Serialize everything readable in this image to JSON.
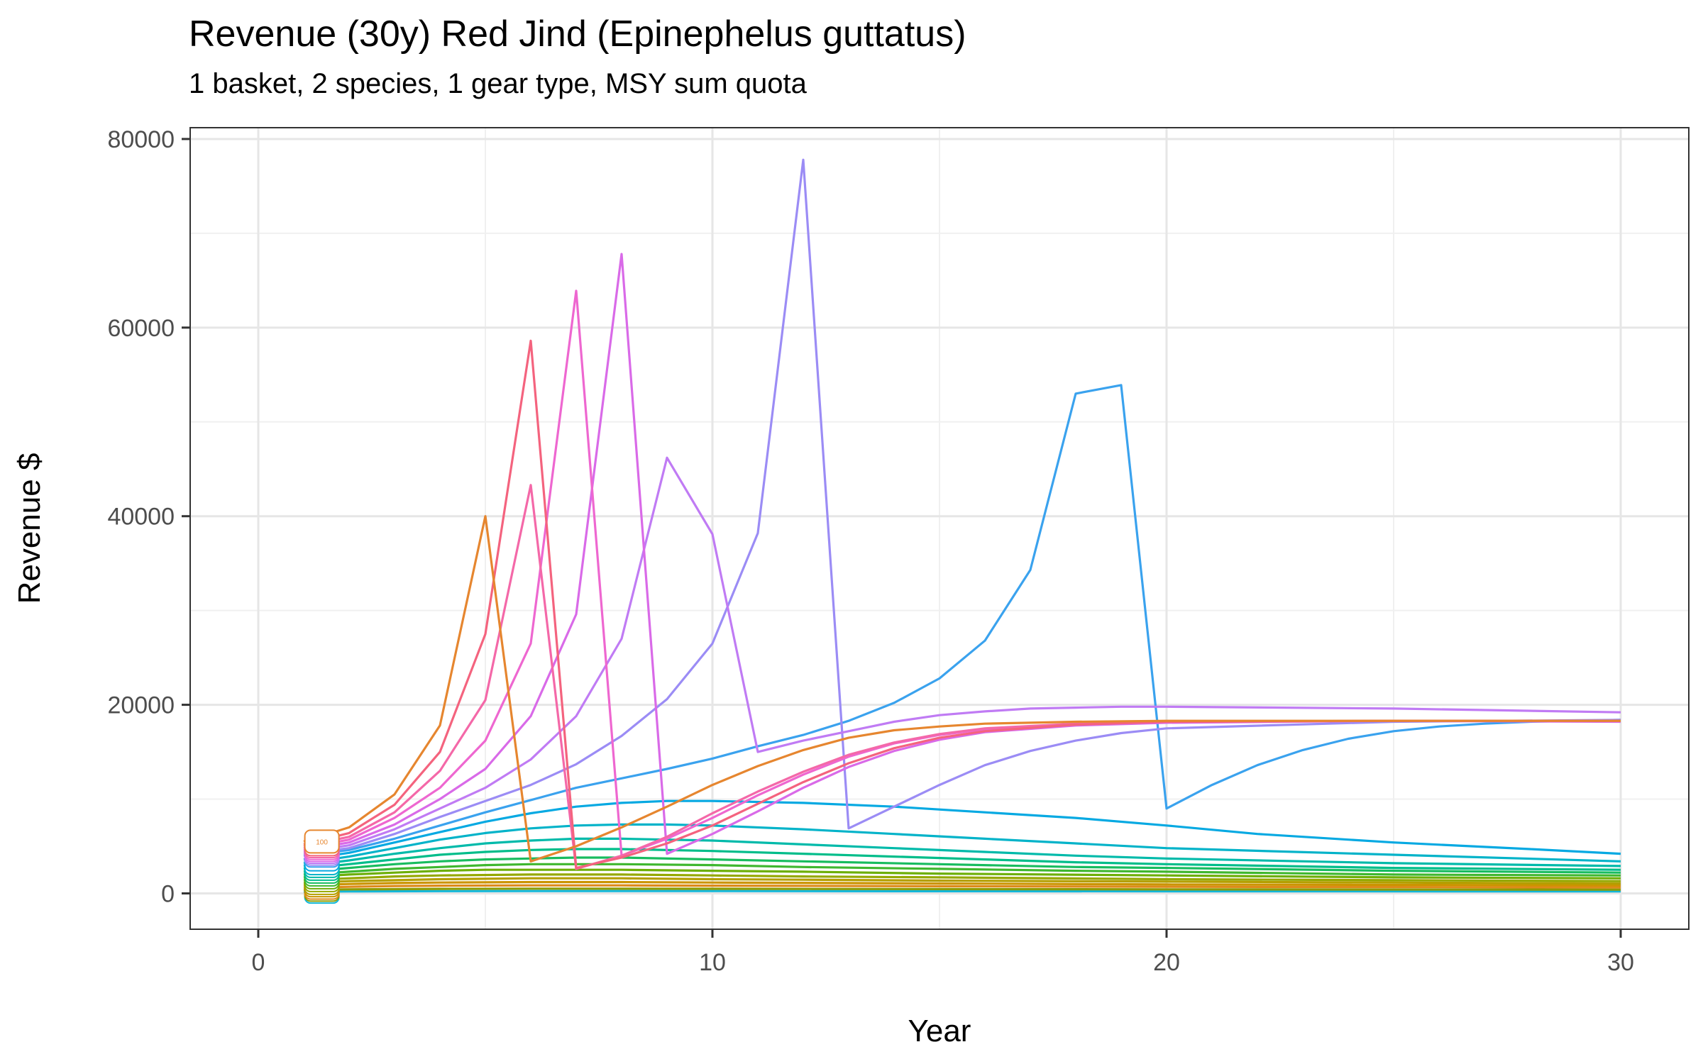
{
  "chart_data": {
    "type": "line",
    "title": "Revenue (30y) Red Jind (Epinephelus guttatus)",
    "subtitle": "1 basket, 2 species, 1 gear type, MSY sum quota",
    "xlabel": "Year",
    "ylabel": "Revenue $",
    "xlim": [
      -1.5,
      31.5
    ],
    "ylim": [
      -3800,
      81200
    ],
    "xticks": [
      0,
      10,
      20,
      30
    ],
    "xtick_labels": [
      "0",
      "10",
      "20",
      "30"
    ],
    "yticks": [
      0,
      20000,
      40000,
      60000,
      80000
    ],
    "ytick_labels": [
      "0",
      "20000",
      "40000",
      "60000",
      "80000"
    ],
    "grid": true,
    "legend": "none",
    "start_label": "100",
    "series": [
      {
        "color": "#E6862F",
        "x": [
          1,
          2,
          3,
          4,
          5,
          6,
          7,
          8,
          9,
          10,
          11,
          12,
          13,
          14,
          15,
          16,
          18,
          20,
          25,
          30
        ],
        "y": [
          5500,
          7000,
          10500,
          17800,
          40000,
          3400,
          5000,
          7000,
          9200,
          11500,
          13500,
          15200,
          16500,
          17300,
          17700,
          18000,
          18200,
          18300,
          18300,
          18300
        ]
      },
      {
        "color": "#F4637E",
        "x": [
          1,
          2,
          3,
          4,
          5,
          6,
          7,
          8,
          9,
          10,
          11,
          12,
          13,
          14,
          15,
          16,
          18,
          20,
          25,
          30
        ],
        "y": [
          5200,
          6400,
          9400,
          15000,
          27500,
          58600,
          2700,
          3800,
          5300,
          7200,
          9500,
          11800,
          13800,
          15400,
          16500,
          17200,
          17900,
          18200,
          18300,
          18300
        ]
      },
      {
        "color": "#F468A8",
        "x": [
          1,
          2,
          3,
          4,
          5,
          6,
          7,
          8,
          9,
          10,
          11,
          12,
          13,
          14,
          15,
          16,
          18,
          20,
          25,
          30
        ],
        "y": [
          5000,
          6000,
          8600,
          13000,
          20500,
          43300,
          2600,
          4000,
          6000,
          8500,
          10800,
          12900,
          14700,
          16000,
          16900,
          17500,
          18000,
          18200,
          18300,
          18300
        ]
      },
      {
        "color": "#EE67D0",
        "x": [
          1,
          2,
          3,
          4,
          5,
          6,
          7,
          8,
          9,
          10,
          11,
          12,
          13,
          14,
          15,
          16,
          18,
          20,
          25,
          30
        ],
        "y": [
          4800,
          5700,
          8000,
          11200,
          16200,
          26500,
          63900,
          4000,
          5800,
          8000,
          10400,
          12600,
          14500,
          15900,
          16800,
          17400,
          18000,
          18200,
          18300,
          18300
        ]
      },
      {
        "color": "#D96AE8",
        "x": [
          1,
          2,
          3,
          4,
          5,
          6,
          7,
          8,
          9,
          10,
          11,
          12,
          13,
          14,
          15,
          16,
          18,
          20,
          25,
          30
        ],
        "y": [
          4600,
          5400,
          7300,
          10000,
          13200,
          18800,
          29600,
          67800,
          4200,
          6300,
          8700,
          11200,
          13400,
          15100,
          16300,
          17100,
          17800,
          18100,
          18300,
          18200
        ]
      },
      {
        "color": "#C07BF4",
        "x": [
          1,
          2,
          3,
          4,
          5,
          6,
          7,
          8,
          9,
          10,
          11,
          12,
          13,
          14,
          15,
          16,
          17,
          18,
          19,
          20,
          25,
          30
        ],
        "y": [
          4400,
          5100,
          6800,
          9000,
          11200,
          14200,
          18800,
          27000,
          46200,
          38100,
          15000,
          16200,
          17200,
          18200,
          18900,
          19300,
          19600,
          19700,
          19800,
          19800,
          19600,
          19200
        ]
      },
      {
        "color": "#9B8CF5",
        "x": [
          1,
          2,
          3,
          4,
          5,
          6,
          7,
          8,
          9,
          10,
          11,
          12,
          13,
          14,
          15,
          16,
          17,
          18,
          19,
          20,
          25,
          30
        ],
        "y": [
          4200,
          4800,
          6300,
          8100,
          9800,
          11500,
          13700,
          16700,
          20600,
          26500,
          38200,
          77800,
          6900,
          9200,
          11500,
          13600,
          15100,
          16200,
          17000,
          17500,
          18200,
          18400
        ]
      },
      {
        "color": "#3AA2EE",
        "x": [
          1,
          2,
          3,
          4,
          5,
          6,
          7,
          8,
          9,
          10,
          11,
          12,
          13,
          14,
          15,
          16,
          17,
          18,
          19,
          20,
          21,
          22,
          23,
          24,
          25,
          26,
          27,
          28,
          29,
          30
        ],
        "y": [
          4000,
          4600,
          5800,
          7200,
          8600,
          9900,
          11200,
          12200,
          13200,
          14300,
          15600,
          16800,
          18300,
          20200,
          22800,
          26800,
          34300,
          53000,
          53900,
          9000,
          11500,
          13600,
          15200,
          16400,
          17200,
          17700,
          18000,
          18200,
          18300,
          18400
        ]
      },
      {
        "color": "#06A9E2",
        "x": [
          1,
          2,
          3,
          4,
          5,
          6,
          7,
          8,
          9,
          10,
          12,
          14,
          16,
          18,
          20,
          22,
          25,
          28,
          30
        ],
        "y": [
          3600,
          4300,
          5400,
          6500,
          7600,
          8500,
          9200,
          9600,
          9800,
          9800,
          9600,
          9200,
          8600,
          8000,
          7200,
          6300,
          5400,
          4700,
          4200
        ]
      },
      {
        "color": "#03B3C9",
        "x": [
          1,
          2,
          3,
          4,
          5,
          6,
          7,
          8,
          9,
          10,
          12,
          14,
          16,
          18,
          20,
          25,
          30
        ],
        "y": [
          3200,
          3900,
          4800,
          5700,
          6400,
          6900,
          7200,
          7300,
          7300,
          7200,
          6800,
          6300,
          5800,
          5300,
          4800,
          4100,
          3400
        ]
      },
      {
        "color": "#00BAAA",
        "x": [
          1,
          2,
          3,
          4,
          5,
          6,
          7,
          8,
          10,
          12,
          14,
          16,
          18,
          20,
          25,
          30
        ],
        "y": [
          2900,
          3500,
          4200,
          4800,
          5300,
          5600,
          5800,
          5800,
          5600,
          5200,
          4800,
          4400,
          4000,
          3700,
          3200,
          2900
        ]
      },
      {
        "color": "#00BD8A",
        "x": [
          1,
          2,
          3,
          4,
          5,
          6,
          7,
          8,
          10,
          12,
          14,
          16,
          18,
          20,
          25,
          30
        ],
        "y": [
          2600,
          3100,
          3600,
          4100,
          4400,
          4600,
          4700,
          4700,
          4500,
          4200,
          3900,
          3600,
          3300,
          3100,
          2700,
          2500
        ]
      },
      {
        "color": "#18BC5F",
        "x": [
          1,
          2,
          3,
          4,
          5,
          6,
          7,
          8,
          10,
          12,
          15,
          18,
          20,
          25,
          30
        ],
        "y": [
          2300,
          2700,
          3100,
          3400,
          3600,
          3700,
          3800,
          3800,
          3600,
          3400,
          3100,
          2800,
          2700,
          2400,
          2200
        ]
      },
      {
        "color": "#3FB72F",
        "x": [
          1,
          2,
          3,
          4,
          5,
          6,
          8,
          10,
          12,
          15,
          18,
          20,
          25,
          30
        ],
        "y": [
          2000,
          2300,
          2600,
          2800,
          3000,
          3100,
          3100,
          3000,
          2800,
          2600,
          2400,
          2300,
          2000,
          1900
        ]
      },
      {
        "color": "#6DAF07",
        "x": [
          1,
          2,
          3,
          4,
          5,
          6,
          8,
          10,
          12,
          15,
          20,
          25,
          30
        ],
        "y": [
          1700,
          2000,
          2200,
          2400,
          2500,
          2500,
          2500,
          2400,
          2300,
          2100,
          1900,
          1700,
          1600
        ]
      },
      {
        "color": "#95A800",
        "x": [
          1,
          2,
          3,
          4,
          6,
          8,
          10,
          12,
          15,
          20,
          25,
          30
        ],
        "y": [
          1400,
          1600,
          1800,
          1900,
          2000,
          2000,
          1900,
          1800,
          1700,
          1500,
          1400,
          1300
        ]
      },
      {
        "color": "#B39F00",
        "x": [
          1,
          2,
          3,
          4,
          6,
          8,
          10,
          12,
          15,
          20,
          25,
          30
        ],
        "y": [
          1100,
          1300,
          1400,
          1500,
          1600,
          1600,
          1500,
          1450,
          1350,
          1250,
          1150,
          1050
        ]
      },
      {
        "color": "#CB9400",
        "x": [
          1,
          2,
          3,
          4,
          6,
          8,
          10,
          15,
          20,
          25,
          30
        ],
        "y": [
          850,
          1000,
          1100,
          1150,
          1200,
          1200,
          1150,
          1050,
          950,
          900,
          850
        ]
      },
      {
        "color": "#DD8A1A",
        "x": [
          1,
          2,
          3,
          4,
          6,
          8,
          10,
          15,
          20,
          30
        ],
        "y": [
          600,
          700,
          780,
          820,
          850,
          850,
          820,
          760,
          700,
          640
        ]
      },
      {
        "color": "#8E9C00",
        "x": [
          1,
          2,
          4,
          6,
          10,
          15,
          20,
          30
        ],
        "y": [
          380,
          430,
          480,
          500,
          490,
          460,
          430,
          400
        ]
      },
      {
        "color": "#13B7D8",
        "x": [
          1,
          2,
          4,
          6,
          10,
          15,
          20,
          30
        ],
        "y": [
          180,
          210,
          240,
          250,
          245,
          235,
          225,
          210
        ]
      }
    ]
  }
}
